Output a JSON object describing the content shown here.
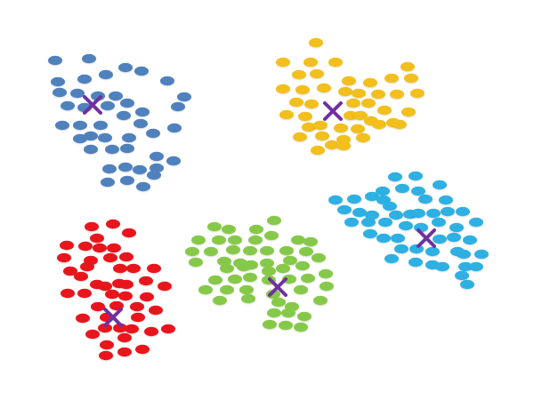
{
  "chart_data": {
    "type": "scatter",
    "series": [
      {
        "color": "#4f81bd",
        "points": [
          [
            62,
            68
          ],
          [
            100,
            66
          ],
          [
            141,
            76
          ],
          [
            119,
            84
          ],
          [
            65,
            92
          ],
          [
            95,
            89
          ],
          [
            159,
            80
          ],
          [
            188,
            91
          ],
          [
            67,
            104
          ],
          [
            87,
            105
          ],
          [
            110,
            108
          ],
          [
            130,
            108
          ],
          [
            207,
            109
          ],
          [
            76,
            119
          ],
          [
            95,
            121
          ],
          [
            121,
            119
          ],
          [
            143,
            116
          ],
          [
            160,
            126
          ],
          [
            200,
            120
          ],
          [
            70,
            141
          ],
          [
            90,
            141
          ],
          [
            113,
            141
          ],
          [
            139,
            130
          ],
          [
            158,
            139
          ],
          [
            102,
            153
          ],
          [
            118,
            155
          ],
          [
            145,
            155
          ],
          [
            172,
            150
          ],
          [
            196,
            144
          ],
          [
            90,
            156
          ],
          [
            102,
            168
          ],
          [
            126,
            168
          ],
          [
            143,
            167
          ],
          [
            176,
            176
          ],
          [
            195,
            181
          ],
          [
            123,
            190
          ],
          [
            141,
            188
          ],
          [
            157,
            191
          ],
          [
            176,
            189
          ],
          [
            121,
            205
          ],
          [
            143,
            203
          ],
          [
            161,
            210
          ],
          [
            173,
            197
          ]
        ],
        "centroid": [
          104,
          118
        ]
      },
      {
        "color": "#f2bf1f",
        "points": [
          [
            355,
            48
          ],
          [
            318,
            70
          ],
          [
            349,
            70
          ],
          [
            377,
            70
          ],
          [
            458,
            75
          ],
          [
            336,
            84
          ],
          [
            356,
            83
          ],
          [
            392,
            91
          ],
          [
            416,
            93
          ],
          [
            440,
            88
          ],
          [
            462,
            88
          ],
          [
            318,
            100
          ],
          [
            340,
            101
          ],
          [
            364,
            99
          ],
          [
            388,
            103
          ],
          [
            403,
            105
          ],
          [
            425,
            106
          ],
          [
            446,
            106
          ],
          [
            469,
            105
          ],
          [
            333,
            115
          ],
          [
            350,
            117
          ],
          [
            397,
            116
          ],
          [
            414,
            116
          ],
          [
            432,
            124
          ],
          [
            459,
            126
          ],
          [
            322,
            129
          ],
          [
            343,
            131
          ],
          [
            394,
            130
          ],
          [
            405,
            130
          ],
          [
            417,
            136
          ],
          [
            442,
            138
          ],
          [
            347,
            143
          ],
          [
            360,
            141
          ],
          [
            383,
            144
          ],
          [
            402,
            145
          ],
          [
            426,
            140
          ],
          [
            449,
            140
          ],
          [
            337,
            154
          ],
          [
            362,
            153
          ],
          [
            386,
            157
          ],
          [
            408,
            155
          ],
          [
            357,
            169
          ],
          [
            373,
            163
          ],
          [
            386,
            164
          ]
        ],
        "centroid": [
          374,
          125
        ]
      },
      {
        "color": "#2eb0e3",
        "points": [
          [
            444,
            199
          ],
          [
            467,
            198
          ],
          [
            430,
            215
          ],
          [
            452,
            212
          ],
          [
            470,
            215
          ],
          [
            494,
            208
          ],
          [
            377,
            225
          ],
          [
            398,
            224
          ],
          [
            418,
            221
          ],
          [
            431,
            225
          ],
          [
            438,
            232
          ],
          [
            478,
            224
          ],
          [
            501,
            225
          ],
          [
            387,
            236
          ],
          [
            404,
            239
          ],
          [
            418,
            242
          ],
          [
            445,
            242
          ],
          [
            461,
            241
          ],
          [
            470,
            240
          ],
          [
            487,
            240
          ],
          [
            503,
            238
          ],
          [
            520,
            238
          ],
          [
            395,
            250
          ],
          [
            414,
            250
          ],
          [
            433,
            250
          ],
          [
            456,
            254
          ],
          [
            473,
            256
          ],
          [
            493,
            250
          ],
          [
            513,
            256
          ],
          [
            535,
            250
          ],
          [
            416,
            263
          ],
          [
            431,
            268
          ],
          [
            447,
            268
          ],
          [
            494,
            269
          ],
          [
            510,
            267
          ],
          [
            528,
            270
          ],
          [
            451,
            280
          ],
          [
            468,
            280
          ],
          [
            486,
            283
          ],
          [
            514,
            283
          ],
          [
            440,
            291
          ],
          [
            467,
            295
          ],
          [
            486,
            298
          ],
          [
            521,
            286
          ],
          [
            541,
            286
          ],
          [
            497,
            300
          ],
          [
            523,
            300
          ],
          [
            519,
            310
          ],
          [
            535,
            300
          ],
          [
            525,
            320
          ]
        ],
        "centroid": [
          479,
          268
        ]
      },
      {
        "color": "#e8171f",
        "points": [
          [
            103,
            255
          ],
          [
            127,
            252
          ],
          [
            109,
            268
          ],
          [
            145,
            262
          ],
          [
            75,
            276
          ],
          [
            96,
            277
          ],
          [
            112,
            279
          ],
          [
            128,
            279
          ],
          [
            72,
            290
          ],
          [
            102,
            293
          ],
          [
            124,
            290
          ],
          [
            142,
            289
          ],
          [
            79,
            305
          ],
          [
            98,
            300
          ],
          [
            135,
            302
          ],
          [
            150,
            302
          ],
          [
            173,
            302
          ],
          [
            91,
            311
          ],
          [
            109,
            320
          ],
          [
            118,
            322
          ],
          [
            134,
            319
          ],
          [
            142,
            320
          ],
          [
            164,
            316
          ],
          [
            185,
            322
          ],
          [
            76,
            330
          ],
          [
            95,
            330
          ],
          [
            126,
            331
          ],
          [
            141,
            333
          ],
          [
            165,
            334
          ],
          [
            110,
            345
          ],
          [
            131,
            344
          ],
          [
            154,
            345
          ],
          [
            175,
            349
          ],
          [
            93,
            358
          ],
          [
            120,
            357
          ],
          [
            155,
            357
          ],
          [
            118,
            369
          ],
          [
            135,
            369
          ],
          [
            148,
            370
          ],
          [
            170,
            373
          ],
          [
            189,
            370
          ],
          [
            104,
            376
          ],
          [
            140,
            380
          ],
          [
            120,
            388
          ],
          [
            119,
            400
          ],
          [
            140,
            396
          ],
          [
            160,
            393
          ]
        ],
        "centroid": [
          127,
          357
        ]
      },
      {
        "color": "#86c94a",
        "points": [
          [
            241,
            255
          ],
          [
            257,
            258
          ],
          [
            288,
            258
          ],
          [
            308,
            248
          ],
          [
            223,
            270
          ],
          [
            246,
            270
          ],
          [
            264,
            270
          ],
          [
            287,
            270
          ],
          [
            305,
            265
          ],
          [
            335,
            270
          ],
          [
            349,
            272
          ],
          [
            216,
            283
          ],
          [
            237,
            283
          ],
          [
            262,
            281
          ],
          [
            281,
            282
          ],
          [
            300,
            282
          ],
          [
            322,
            282
          ],
          [
            344,
            283
          ],
          [
            220,
            295
          ],
          [
            252,
            294
          ],
          [
            270,
            296
          ],
          [
            282,
            298
          ],
          [
            300,
            296
          ],
          [
            326,
            293
          ],
          [
            358,
            290
          ],
          [
            255,
            302
          ],
          [
            274,
            300
          ],
          [
            302,
            305
          ],
          [
            318,
            302
          ],
          [
            340,
            299
          ],
          [
            242,
            315
          ],
          [
            264,
            314
          ],
          [
            281,
            312
          ],
          [
            302,
            315
          ],
          [
            325,
            314
          ],
          [
            346,
            313
          ],
          [
            366,
            308
          ],
          [
            231,
            326
          ],
          [
            255,
            326
          ],
          [
            277,
            326
          ],
          [
            307,
            331
          ],
          [
            338,
            326
          ],
          [
            367,
            322
          ],
          [
            247,
            338
          ],
          [
            279,
            336
          ],
          [
            313,
            340
          ],
          [
            328,
            345
          ],
          [
            360,
            338
          ],
          [
            308,
            352
          ],
          [
            324,
            352
          ],
          [
            342,
            356
          ],
          [
            303,
            365
          ],
          [
            321,
            366
          ],
          [
            338,
            368
          ]
        ],
        "centroid": [
          312,
          323
        ]
      }
    ],
    "title": "",
    "xlabel": "",
    "ylabel": "",
    "grid": false,
    "legend": false
  },
  "markers": {
    "point_color_note": "",
    "centroid_color": "#7030a0"
  }
}
